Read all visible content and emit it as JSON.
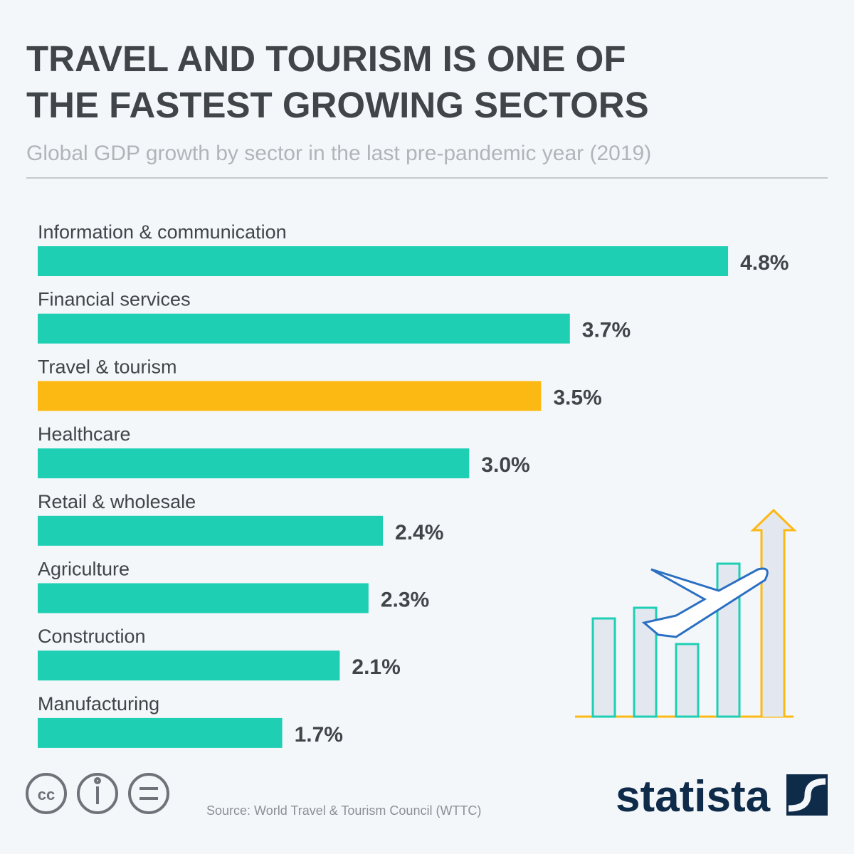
{
  "chart_data": {
    "type": "bar",
    "orientation": "horizontal",
    "title": "TRAVEL AND TOURISM IS ONE OF THE FASTEST GROWING SECTORS",
    "subtitle": "Global GDP growth by sector in the last pre-pandemic year (2019)",
    "categories": [
      "Information & communication",
      "Financial services",
      "Travel & tourism",
      "Healthcare",
      "Retail & wholesale",
      "Agriculture",
      "Construction",
      "Manufacturing"
    ],
    "values": [
      4.8,
      3.7,
      3.5,
      3.0,
      2.4,
      2.3,
      2.1,
      1.7
    ],
    "value_labels": [
      "4.8%",
      "3.7%",
      "3.5%",
      "3.0%",
      "2.4%",
      "2.3%",
      "2.1%",
      "1.7%"
    ],
    "colors": [
      "#1ecfb4",
      "#1ecfb4",
      "#fdb913",
      "#1ecfb4",
      "#1ecfb4",
      "#1ecfb4",
      "#1ecfb4",
      "#1ecfb4"
    ],
    "source": "Source: World Travel & Tourism Council (WTTC)",
    "brand": "statista"
  }
}
